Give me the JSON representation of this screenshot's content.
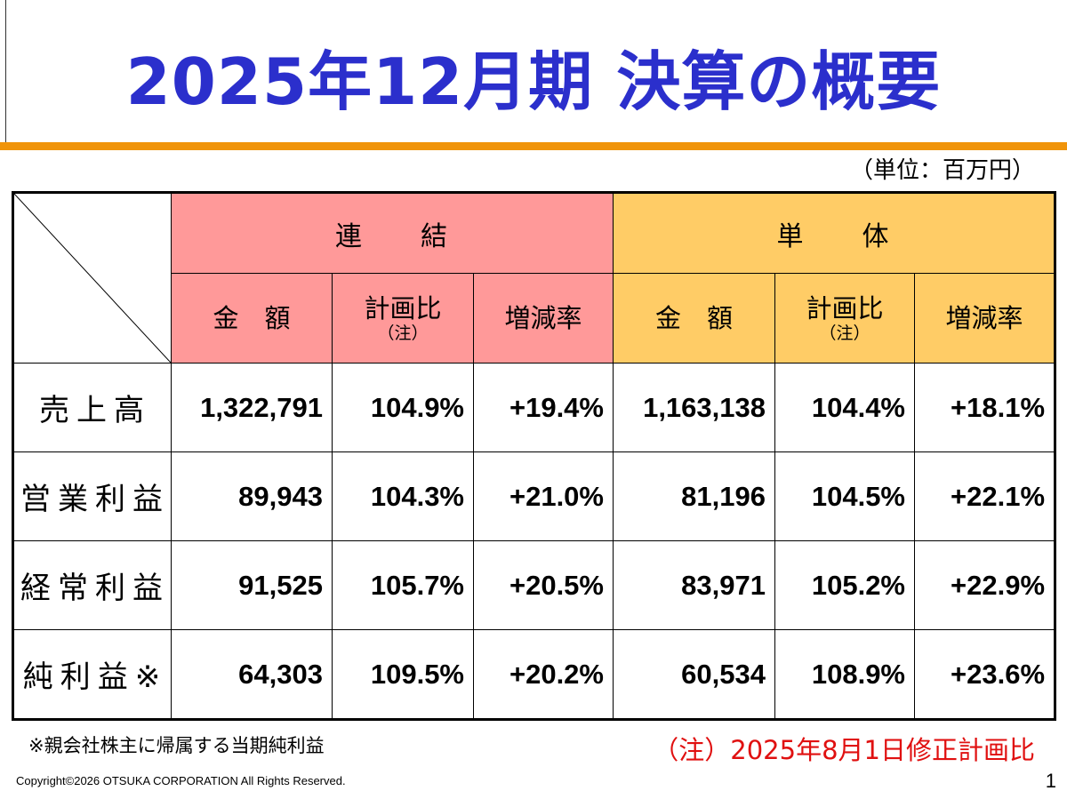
{
  "slide": {
    "title": "2025年12月期 決算の概要",
    "unit": "（単位：百万円）",
    "page_number": "1",
    "copyright": "Copyright©2026 OTSUKA CORPORATION All Rights Reserved."
  },
  "table": {
    "groups": {
      "consolidated": "連　　結",
      "standalone": "単　　体"
    },
    "columns": {
      "amount": "金　額",
      "plan_ratio": "計画比",
      "plan_ratio_note": "（注）",
      "change_rate": "増減率"
    },
    "rows": [
      {
        "label": "売上高",
        "consolidated": {
          "amount": "1,322,791",
          "plan_ratio": "104.9%",
          "change_rate": "+19.4%"
        },
        "standalone": {
          "amount": "1,163,138",
          "plan_ratio": "104.4%",
          "change_rate": "+18.1%"
        }
      },
      {
        "label": "営業利益",
        "consolidated": {
          "amount": "89,943",
          "plan_ratio": "104.3%",
          "change_rate": "+21.0%"
        },
        "standalone": {
          "amount": "81,196",
          "plan_ratio": "104.5%",
          "change_rate": "+22.1%"
        }
      },
      {
        "label": "経常利益",
        "consolidated": {
          "amount": "91,525",
          "plan_ratio": "105.7%",
          "change_rate": "+20.5%"
        },
        "standalone": {
          "amount": "83,971",
          "plan_ratio": "105.2%",
          "change_rate": "+22.9%"
        }
      },
      {
        "label": "純利益※",
        "consolidated": {
          "amount": "64,303",
          "plan_ratio": "109.5%",
          "change_rate": "+20.2%"
        },
        "standalone": {
          "amount": "60,534",
          "plan_ratio": "108.9%",
          "change_rate": "+23.6%"
        }
      }
    ]
  },
  "footnotes": {
    "net_income_note": "※親会社株主に帰属する当期純利益",
    "plan_note": "（注）2025年8月1日修正計画比"
  },
  "colors": {
    "title": "#2b2fcc",
    "rule": "#f0940a",
    "consolidated_header": "#ff9999",
    "standalone_header": "#ffcc66",
    "plan_note": "#e01010"
  }
}
